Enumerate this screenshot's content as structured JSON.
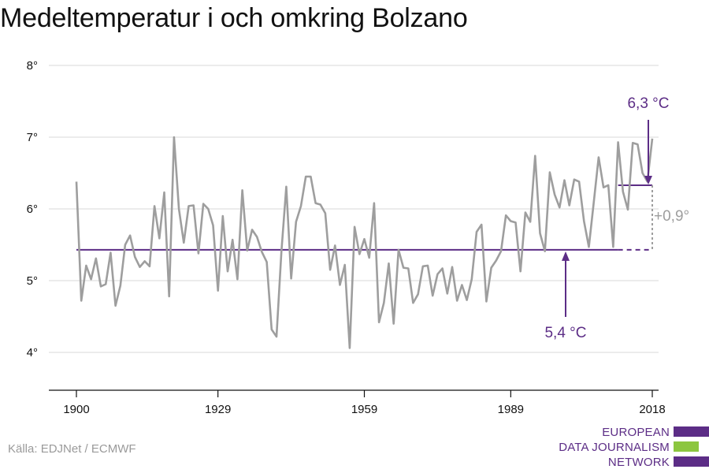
{
  "title": "Medeltemperatur i och omkring Bolzano",
  "source": "Källa: EDJNet / ECMWF",
  "logo": {
    "lines": [
      "EUROPEAN",
      "DATA JOURNALISM",
      "NETWORK"
    ]
  },
  "colors": {
    "series": "#9e9e9e",
    "mean": "#5c2d86",
    "grid": "#d9d9d9",
    "axis": "#111111",
    "diff": "#9e9e9e",
    "logo_purple": "#5c2d86",
    "logo_green": "#8cc63f"
  },
  "chart_data": {
    "type": "line",
    "title": "Medeltemperatur i och omkring Bolzano",
    "xlim": [
      1900,
      2018
    ],
    "ylim": [
      3.4,
      8.2
    ],
    "xticks": [
      1900,
      1929,
      1959,
      1989,
      2018
    ],
    "xtick_labels": [
      "1900",
      "1929",
      "1959",
      "1989",
      "2018"
    ],
    "yticks": [
      4,
      5,
      6,
      7,
      8
    ],
    "ytick_labels": [
      "4°",
      "5°",
      "6°",
      "7°",
      "8°"
    ],
    "grid": true,
    "series": [
      {
        "x": [
          1900,
          1901,
          1902,
          1903,
          1904,
          1905,
          1906,
          1907,
          1908,
          1909,
          1910,
          1911,
          1912,
          1913,
          1914,
          1915,
          1916,
          1917,
          1918,
          1919,
          1920,
          1921,
          1922,
          1923,
          1924,
          1925,
          1926,
          1927,
          1928,
          1929,
          1930,
          1931,
          1932,
          1933,
          1934,
          1935,
          1936,
          1937,
          1938,
          1939,
          1940,
          1941,
          1942,
          1943,
          1944,
          1945,
          1946,
          1947,
          1948,
          1949,
          1950,
          1951,
          1952,
          1953,
          1954,
          1955,
          1956,
          1957,
          1958,
          1959,
          1960,
          1961,
          1962,
          1963,
          1964,
          1965,
          1966,
          1967,
          1968,
          1969,
          1970,
          1971,
          1972,
          1973,
          1974,
          1975,
          1976,
          1977,
          1978,
          1979,
          1980,
          1981,
          1982,
          1983,
          1984,
          1985,
          1986,
          1987,
          1988,
          1989,
          1990,
          1991,
          1992,
          1993,
          1994,
          1995,
          1996,
          1997,
          1998,
          1999,
          2000,
          2001,
          2002,
          2003,
          2004,
          2005,
          2006,
          2007,
          2008,
          2009,
          2010,
          2011,
          2012,
          2013,
          2014,
          2015,
          2016,
          2017,
          2018
        ],
        "values": [
          6.38,
          4.72,
          5.21,
          5.02,
          5.31,
          4.92,
          4.95,
          5.39,
          4.65,
          4.93,
          5.5,
          5.63,
          5.33,
          5.19,
          5.27,
          5.2,
          6.04,
          5.59,
          6.23,
          4.78,
          7.0,
          6.0,
          5.53,
          6.04,
          6.05,
          5.38,
          6.07,
          6.0,
          5.77,
          4.86,
          5.9,
          5.13,
          5.57,
          5.02,
          6.26,
          5.42,
          5.71,
          5.61,
          5.4,
          5.26,
          4.32,
          4.22,
          5.4,
          6.31,
          5.03,
          5.82,
          6.04,
          6.45,
          6.45,
          6.08,
          6.06,
          5.94,
          5.15,
          5.49,
          4.94,
          5.22,
          4.06,
          5.75,
          5.37,
          5.58,
          5.32,
          6.08,
          4.42,
          4.69,
          5.24,
          4.4,
          5.43,
          5.18,
          5.17,
          4.69,
          4.81,
          5.2,
          5.21,
          4.79,
          5.09,
          5.17,
          4.82,
          5.19,
          4.72,
          4.94,
          4.73,
          5.02,
          5.68,
          5.78,
          4.71,
          5.18,
          5.28,
          5.41,
          5.91,
          5.83,
          5.81,
          5.13,
          5.95,
          5.82,
          6.74,
          5.66,
          5.41,
          6.51,
          6.2,
          6.02,
          6.4,
          6.05,
          6.41,
          6.38,
          5.83,
          5.47,
          6.09,
          6.72,
          6.3,
          6.33,
          5.47,
          6.93,
          6.24,
          5.99,
          6.92,
          6.9,
          6.5,
          6.38,
          6.98
        ]
      }
    ],
    "reference_lines": [
      {
        "label": "5,4 °C",
        "value": 5.43,
        "from": 1900,
        "to": 2018,
        "solid_to": 2011
      },
      {
        "label": "6,3 °C",
        "value": 6.33,
        "from": 2011,
        "to": 2018
      }
    ],
    "difference_label": "+0,9°"
  }
}
